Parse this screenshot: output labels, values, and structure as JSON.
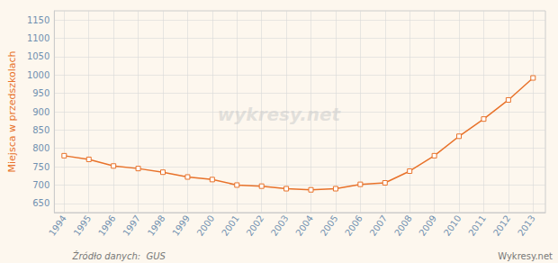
{
  "chart_data": {
    "type": "line",
    "ylabel": "Miejsca w przedszkolach",
    "annotations": [
      "wykresy.net",
      "Źródło danych:  GUS",
      "Wykresy.net"
    ],
    "x": [
      1994,
      1995,
      1996,
      1997,
      1998,
      1999,
      2000,
      2001,
      2002,
      2003,
      2004,
      2005,
      2006,
      2007,
      2008,
      2009,
      2010,
      2011,
      2012,
      2013
    ],
    "values": [
      780,
      770,
      752,
      745,
      735,
      722,
      715,
      700,
      697,
      690,
      687,
      690,
      702,
      706,
      738,
      780,
      833,
      880,
      932,
      992
    ],
    "color": "#e8722a",
    "marker": "square",
    "xlim": [
      1993.6,
      2013.5
    ],
    "xticks": [
      1994,
      1995,
      1996,
      1997,
      1998,
      1999,
      2000,
      2001,
      2002,
      2003,
      2004,
      2005,
      2006,
      2007,
      2008,
      2009,
      2010,
      2011,
      2012,
      2013
    ],
    "ylim": [
      625,
      1175
    ],
    "yticks": [
      650,
      700,
      750,
      800,
      850,
      900,
      950,
      1000,
      1050,
      1100,
      1150
    ],
    "grid": true
  }
}
